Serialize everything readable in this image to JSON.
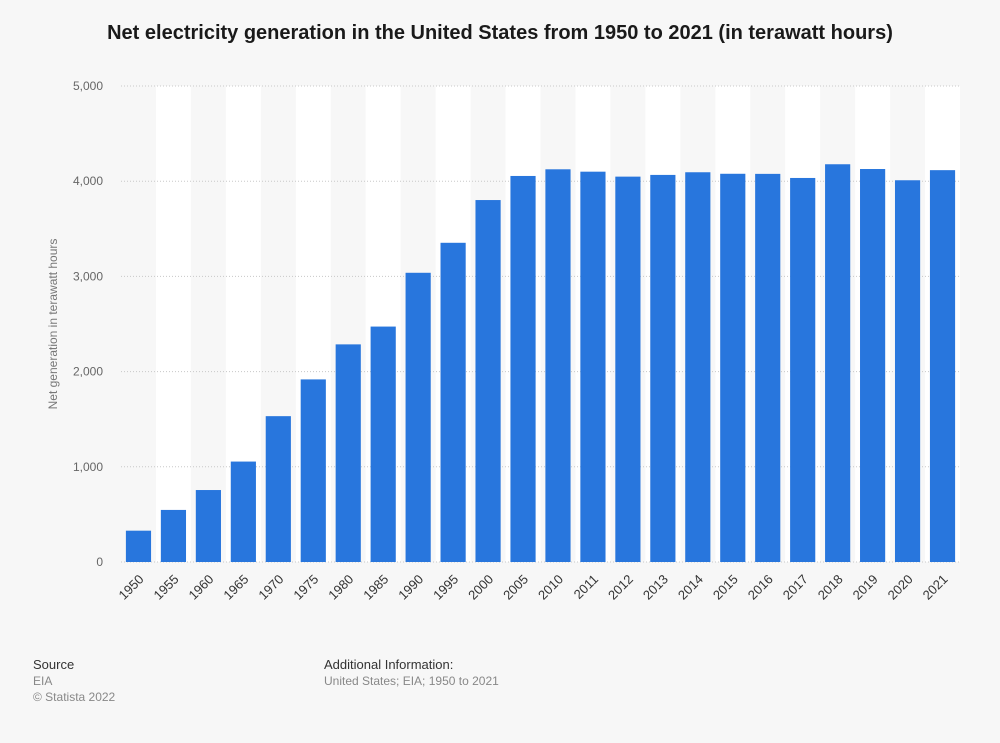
{
  "chart_data": {
    "type": "bar",
    "title": "Net electricity generation in the United States from 1950 to 2021 (in terawatt hours)",
    "xlabel": "",
    "ylabel": "Net generation in terawatt hours",
    "ylim": [
      0,
      5000
    ],
    "yticks": [
      0,
      1000,
      2000,
      3000,
      4000,
      5000
    ],
    "ytick_labels": [
      "0",
      "1,000",
      "2,000",
      "3,000",
      "4,000",
      "5,000"
    ],
    "grid": true,
    "categories": [
      "1950",
      "1955",
      "1960",
      "1965",
      "1970",
      "1975",
      "1980",
      "1985",
      "1990",
      "1995",
      "2000",
      "2005",
      "2010",
      "2011",
      "2012",
      "2013",
      "2014",
      "2015",
      "2016",
      "2017",
      "2018",
      "2019",
      "2020",
      "2021"
    ],
    "values": [
      329,
      547,
      756,
      1055,
      1532,
      1918,
      2286,
      2473,
      3038,
      3353,
      3802,
      4055,
      4125,
      4100,
      4048,
      4066,
      4094,
      4078,
      4077,
      4034,
      4178,
      4128,
      4010,
      4116
    ],
    "bar_color": "#2876dd"
  },
  "footer": {
    "source_label": "Source",
    "source_value": "EIA",
    "copyright": "© Statista 2022",
    "info_label": "Additional Information:",
    "info_value": "United States; EIA; 1950 to 2021"
  }
}
